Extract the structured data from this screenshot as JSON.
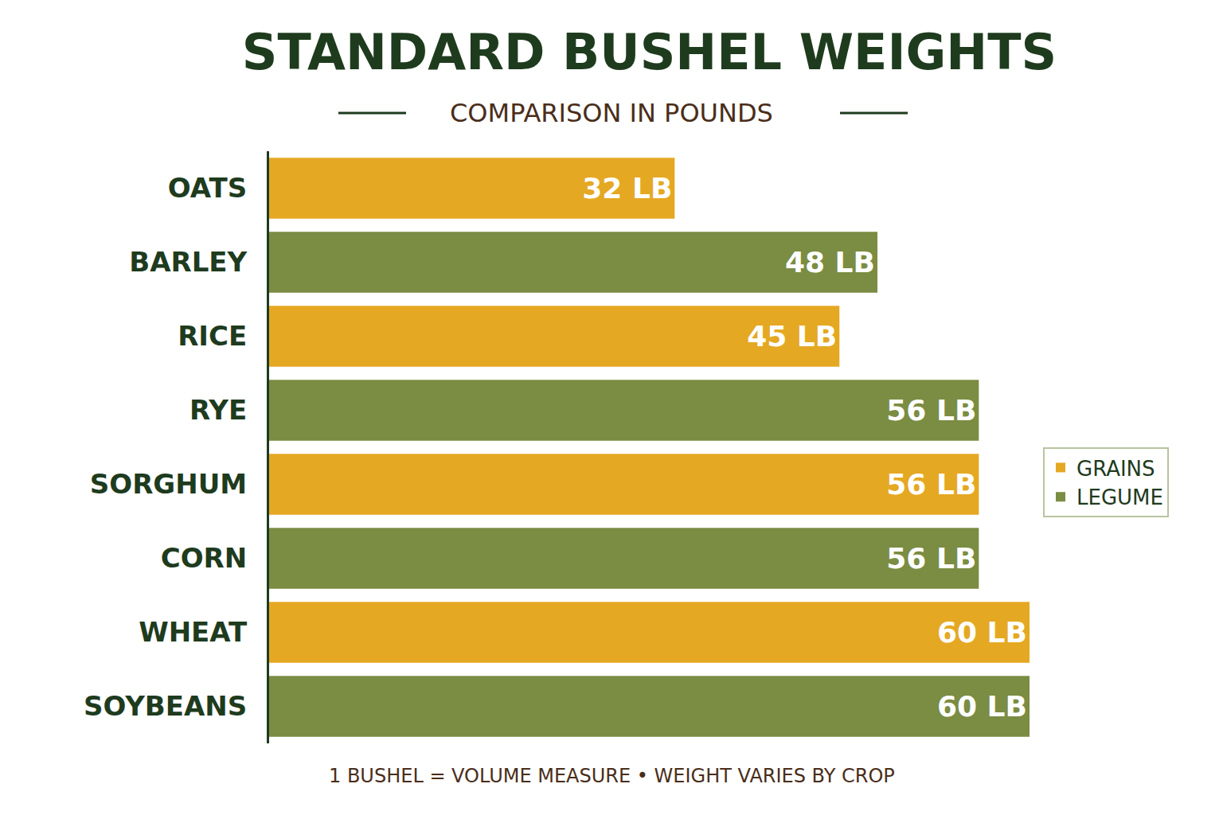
{
  "chart_data": {
    "type": "bar",
    "title": "STANDARD BUSHEL WEIGHTS",
    "subtitle": "COMPARISON IN POUNDS",
    "annotations": [
      "1 BUSHEL = VOLUME MEASURE • WEIGHT VARIES BY CROP"
    ],
    "orientation": "horizontal",
    "categories": [
      "OATS",
      "BARLEY",
      "RICE",
      "RYE",
      "SORGHUM",
      "CORN",
      "WHEAT",
      "SOYBEANS"
    ],
    "series": [
      {
        "name": "GRAINS",
        "color": "#e5a823",
        "values": [
          32,
          null,
          45,
          null,
          56,
          null,
          60,
          null
        ],
        "value_labels": [
          "32 LB",
          null,
          "45 LB",
          null,
          "56 LB",
          null,
          "60 LB",
          null
        ]
      },
      {
        "name": "LEGUME",
        "color": "#7b8c43",
        "values": [
          null,
          48,
          null,
          56,
          null,
          56,
          null,
          60
        ],
        "value_labels": [
          null,
          "48 LB",
          null,
          "56 LB",
          null,
          "56 LB",
          null,
          "60 LB"
        ]
      }
    ],
    "xlim": [
      0,
      60
    ],
    "data_labels": true,
    "tick_labels": "y",
    "grid": false,
    "legend": "right"
  }
}
